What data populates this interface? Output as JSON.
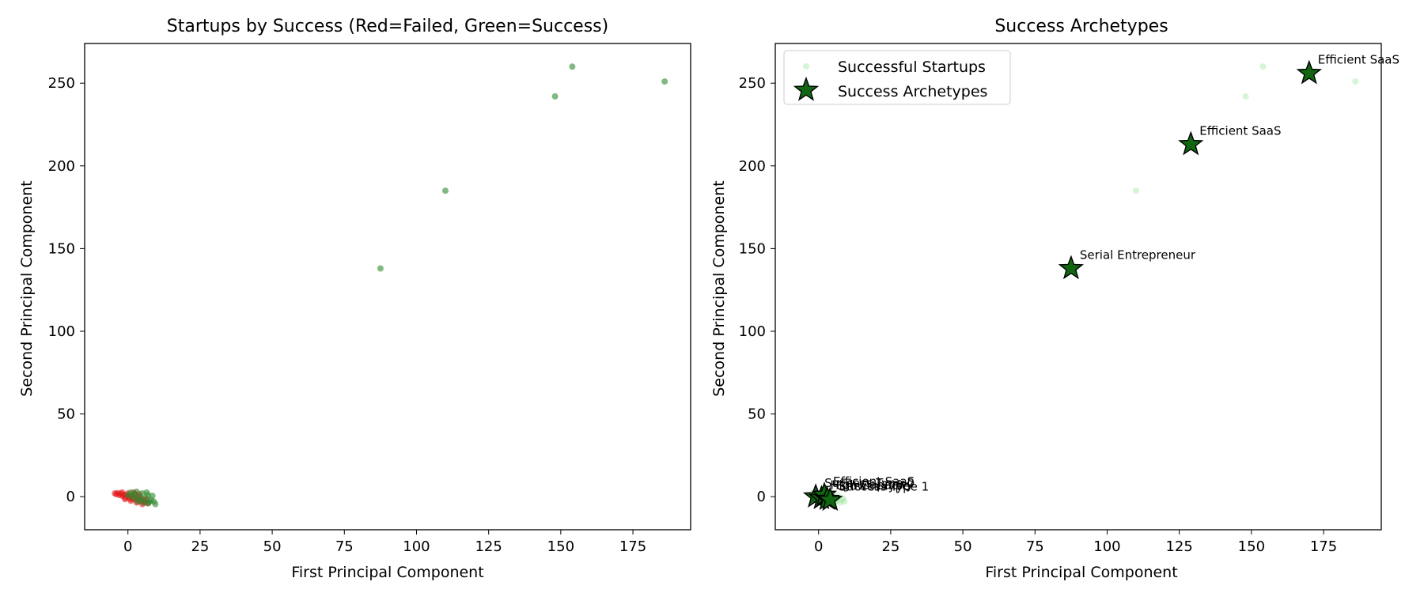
{
  "chart_data": [
    {
      "type": "scatter",
      "title": "Startups by Success (Red=Failed, Green=Success)",
      "xlabel": "First Principal Component",
      "ylabel": "Second Principal Component",
      "xlim": [
        -15,
        195
      ],
      "ylim": [
        -20,
        274
      ],
      "xticks": [
        0,
        25,
        50,
        75,
        100,
        125,
        150,
        175
      ],
      "yticks": [
        0,
        50,
        100,
        150,
        200,
        250
      ],
      "colors": {
        "failed": "#e31a1c",
        "success": "#2e8b2e"
      },
      "series": [
        {
          "values": [
            [
              -4.5,
              2.0
            ],
            [
              -4.0,
              1.5
            ],
            [
              -3.5,
              2.2
            ],
            [
              -3.0,
              1.0
            ],
            [
              -2.5,
              1.8
            ],
            [
              -2.0,
              0.5
            ],
            [
              -1.5,
              1.2
            ],
            [
              -1.0,
              -0.5
            ],
            [
              -0.5,
              0.8
            ],
            [
              0.0,
              0.0
            ],
            [
              0.5,
              -1.0
            ],
            [
              1.0,
              0.5
            ],
            [
              1.5,
              -1.5
            ],
            [
              2.0,
              -0.8
            ],
            [
              2.5,
              1.5
            ],
            [
              3.0,
              -2.0
            ],
            [
              3.5,
              0.0
            ],
            [
              4.0,
              -2.5
            ],
            [
              4.5,
              -1.0
            ],
            [
              5.0,
              -3.0
            ],
            [
              5.5,
              -2.0
            ],
            [
              6.0,
              -3.5
            ],
            [
              6.5,
              -1.5
            ],
            [
              7.0,
              -4.0
            ],
            [
              -2.0,
              2.5
            ],
            [
              0.0,
              2.0
            ],
            [
              2.0,
              2.5
            ],
            [
              4.0,
              1.5
            ],
            [
              1.0,
              -2.5
            ],
            [
              3.0,
              -3.5
            ],
            [
              5.0,
              -4.5
            ],
            [
              -1.0,
              -1.5
            ]
          ]
        },
        {
          "values": [
            [
              0.0,
              1.0
            ],
            [
              1.0,
              2.5
            ],
            [
              2.0,
              1.5
            ],
            [
              3.0,
              3.0
            ],
            [
              4.0,
              0.0
            ],
            [
              5.0,
              2.0
            ],
            [
              6.0,
              -1.0
            ],
            [
              7.0,
              1.0
            ],
            [
              8.0,
              -2.0
            ],
            [
              9.0,
              -3.0
            ],
            [
              6.5,
              2.5
            ],
            [
              7.5,
              -3.0
            ],
            [
              4.5,
              -2.0
            ],
            [
              8.5,
              0.5
            ],
            [
              3.5,
              -3.0
            ],
            [
              5.5,
              -3.5
            ],
            [
              2.5,
              -1.0
            ],
            [
              7.0,
              -4.0
            ],
            [
              9.5,
              -4.5
            ],
            [
              1.5,
              0.0
            ],
            [
              87.5,
              138
            ],
            [
              110,
              185
            ],
            [
              148,
              242
            ],
            [
              154,
              260
            ],
            [
              186,
              251
            ]
          ]
        }
      ]
    },
    {
      "type": "scatter",
      "title": "Success Archetypes",
      "xlabel": "First Principal Component",
      "ylabel": "Second Principal Component",
      "xlim": [
        -15,
        195
      ],
      "ylim": [
        -20,
        274
      ],
      "xticks": [
        0,
        25,
        50,
        75,
        100,
        125,
        150,
        175
      ],
      "yticks": [
        0,
        50,
        100,
        150,
        200,
        250
      ],
      "legend_position": "top-left",
      "colors": {
        "startups": "#98e698",
        "archetype": "#116611"
      },
      "series": [
        {
          "name": "Successful Startups",
          "values": [
            [
              -3.0,
              1.0
            ],
            [
              -2.0,
              0.5
            ],
            [
              -1.0,
              -0.5
            ],
            [
              0.0,
              1.0
            ],
            [
              1.0,
              2.0
            ],
            [
              2.0,
              1.0
            ],
            [
              3.0,
              2.5
            ],
            [
              4.0,
              0.0
            ],
            [
              5.0,
              1.5
            ],
            [
              6.0,
              -1.0
            ],
            [
              7.0,
              0.5
            ],
            [
              8.0,
              -2.0
            ],
            [
              9.0,
              -3.0
            ],
            [
              6.5,
              -2.5
            ],
            [
              7.5,
              -3.5
            ],
            [
              4.5,
              -2.0
            ],
            [
              8.5,
              -1.0
            ],
            [
              3.5,
              -3.0
            ],
            [
              5.5,
              -3.5
            ],
            [
              2.5,
              -1.0
            ],
            [
              110,
              185
            ],
            [
              148,
              242
            ],
            [
              154,
              260
            ],
            [
              186,
              251
            ]
          ]
        },
        {
          "name": "Success Archetypes",
          "values": [
            [
              -1.0,
              0.0
            ],
            [
              1.0,
              -1.0
            ],
            [
              2.0,
              1.0
            ],
            [
              3.0,
              -1.5
            ],
            [
              4.0,
              -2.0
            ],
            [
              87.5,
              138
            ],
            [
              129,
              213
            ],
            [
              170,
              256
            ]
          ],
          "labels": [
            "Success Type 0",
            "High Capacity",
            "Efficient SaaS",
            "Growth Type",
            "Success Type 1",
            "Serial Entrepreneur",
            "Efficient SaaS",
            "Efficient SaaS"
          ]
        }
      ]
    }
  ]
}
